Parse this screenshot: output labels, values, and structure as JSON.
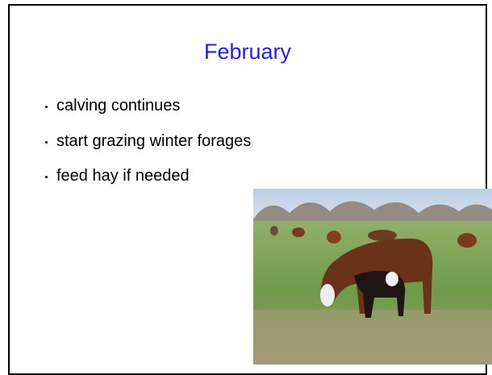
{
  "title": "February",
  "bullets": [
    "calving continues",
    "start grazing winter forages",
    "feed hay if needed"
  ]
}
